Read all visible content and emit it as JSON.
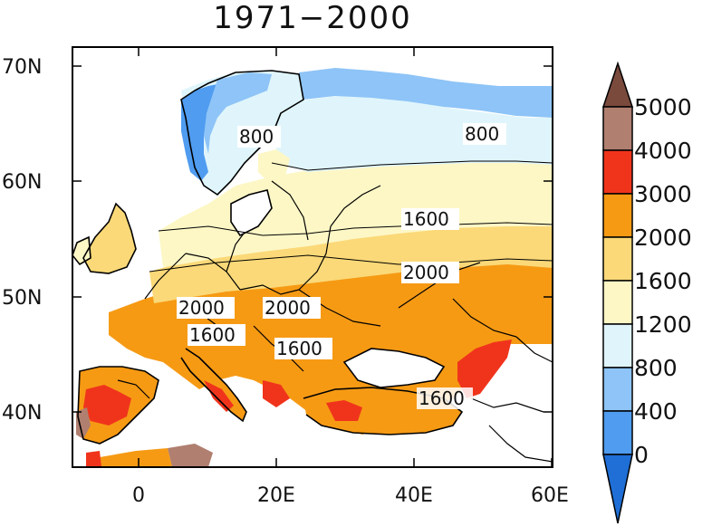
{
  "title": "1971−2000",
  "axes": {
    "y_ticks": [
      "70N",
      "60N",
      "50N",
      "40N"
    ],
    "x_ticks": [
      "0",
      "20E",
      "40E",
      "60E"
    ]
  },
  "colorbar": {
    "levels": [
      "0",
      "400",
      "800",
      "1200",
      "1600",
      "2000",
      "3000",
      "4000",
      "5000"
    ],
    "colors": [
      "#1f6fd6",
      "#4f9cf0",
      "#8ec4f7",
      "#dff5fb",
      "#fdf7c6",
      "#fbd978",
      "#f69a14",
      "#f0341c",
      "#b07f70",
      "#7a4a3d"
    ]
  },
  "contour_labels": [
    "800",
    "800",
    "1600",
    "2000",
    "2000",
    "2000",
    "1600",
    "1600",
    "1600"
  ],
  "regions": {
    "band_0_400": "#4f9cf0",
    "band_400_800": "#8ec4f7",
    "band_800_1200": "#dff5fb",
    "band_1200_1600": "#fdf7c6",
    "band_1600_2000": "#fbd978",
    "band_2000_3000": "#f69a14",
    "band_3000_4000": "#f0341c",
    "band_4000_5000": "#b07f70"
  }
}
